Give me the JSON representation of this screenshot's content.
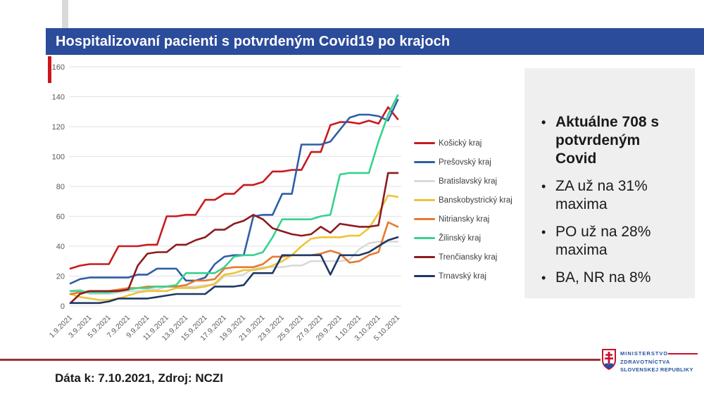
{
  "title_bar": {
    "title": "Hospitalizovaní pacienti s potvrdeným Covid19 po krajoch",
    "bg_color": "#2B4B9B",
    "accent_red": "#D01317"
  },
  "chart_data": {
    "type": "line",
    "title": "",
    "xlabel": "",
    "ylabel": "",
    "ylim": [
      0,
      160
    ],
    "ytick_step": 20,
    "grid": "horizontal-only",
    "legend_position": "right",
    "x_label_every": 2,
    "categories": [
      "1.9.2021",
      "2.9.2021",
      "3.9.2021",
      "4.9.2021",
      "5.9.2021",
      "6.9.2021",
      "7.9.2021",
      "8.9.2021",
      "9.9.2021",
      "10.9.2021",
      "11.9.2021",
      "12.9.2021",
      "13.9.2021",
      "14.9.2021",
      "15.9.2021",
      "16.9.2021",
      "17.9.2021",
      "18.9.2021",
      "19.9.2021",
      "20.9.2021",
      "21.9.2021",
      "22.9.2021",
      "23.9.2021",
      "24.9.2021",
      "25.9.2021",
      "26.9.2021",
      "27.9.2021",
      "28.9.2021",
      "29.9.2021",
      "30.9.2021",
      "1.10.2021",
      "2.10.2021",
      "3.10.2021",
      "4.10.2021",
      "5.10.2021"
    ],
    "series": [
      {
        "name": "Košický kraj",
        "color": "#C81A1E",
        "values": [
          25,
          27,
          28,
          28,
          28,
          40,
          40,
          40,
          41,
          41,
          60,
          60,
          61,
          61,
          71,
          71,
          75,
          75,
          81,
          81,
          83,
          90,
          90,
          91,
          91,
          103,
          103,
          121,
          123,
          123,
          122,
          124,
          122,
          133,
          125
        ]
      },
      {
        "name": "Prešovský kraj",
        "color": "#2F5FA5",
        "values": [
          15,
          18,
          19,
          19,
          19,
          19,
          19,
          21,
          21,
          25,
          25,
          25,
          17,
          17,
          19,
          28,
          33,
          34,
          34,
          60,
          61,
          61,
          75,
          75,
          108,
          108,
          108,
          110,
          118,
          126,
          128,
          128,
          127,
          124,
          138
        ]
      },
      {
        "name": "Bratislavský kraj",
        "color": "#D9D9D9",
        "values": [
          10,
          11,
          8,
          8,
          8,
          9,
          10,
          10,
          11,
          11,
          13,
          13,
          13,
          13,
          14,
          14,
          20,
          20,
          21,
          25,
          26,
          26,
          26,
          27,
          27,
          30,
          30,
          30,
          30,
          31,
          38,
          42,
          43,
          43,
          43
        ]
      },
      {
        "name": "Banskobystrický kraj",
        "color": "#EDC437",
        "values": [
          8,
          6,
          5,
          4,
          4,
          5,
          7,
          9,
          10,
          10,
          10,
          12,
          12,
          12,
          13,
          15,
          21,
          22,
          24,
          24,
          25,
          27,
          30,
          34,
          40,
          45,
          46,
          46,
          46,
          47,
          47,
          52,
          62,
          74,
          73
        ]
      },
      {
        "name": "Nitriansky kraj",
        "color": "#E8792E",
        "values": [
          8,
          9,
          10,
          10,
          10,
          11,
          12,
          12,
          13,
          13,
          13,
          13,
          14,
          17,
          17,
          18,
          25,
          26,
          26,
          26,
          28,
          33,
          33,
          34,
          34,
          34,
          35,
          37,
          35,
          29,
          30,
          34,
          36,
          56,
          53
        ]
      },
      {
        "name": "Žilinský kraj",
        "color": "#35D28F",
        "values": [
          10,
          10,
          9,
          9,
          9,
          10,
          11,
          12,
          12,
          13,
          13,
          14,
          22,
          22,
          22,
          22,
          26,
          33,
          34,
          34,
          36,
          46,
          58,
          58,
          58,
          58,
          60,
          61,
          88,
          89,
          89,
          89,
          110,
          128,
          141
        ]
      },
      {
        "name": "Trenčiansky kraj",
        "color": "#8B1B1E",
        "values": [
          2,
          8,
          10,
          10,
          10,
          10,
          11,
          27,
          35,
          36,
          36,
          41,
          41,
          44,
          46,
          51,
          51,
          55,
          57,
          61,
          58,
          52,
          50,
          48,
          47,
          48,
          53,
          49,
          55,
          54,
          53,
          53,
          54,
          89,
          89
        ]
      },
      {
        "name": "Trnavský kraj",
        "color": "#1F3864",
        "values": [
          2,
          2,
          2,
          2,
          3,
          5,
          5,
          5,
          5,
          6,
          7,
          8,
          8,
          8,
          8,
          13,
          13,
          13,
          14,
          22,
          22,
          22,
          34,
          34,
          34,
          34,
          34,
          21,
          34,
          34,
          34,
          36,
          40,
          44,
          46
        ]
      }
    ]
  },
  "panel": {
    "bg_color": "#EFEFEF",
    "bullets": [
      {
        "text": "Aktuálne 708 s potvrdeným Covid",
        "bold": true
      },
      {
        "text": "ZA už na 31% maxima",
        "bold": false
      },
      {
        "text": "PO už na 28% maxima",
        "bold": false
      },
      {
        "text": "BA, NR na 8%",
        "bold": false
      }
    ]
  },
  "footer": {
    "text": "Dáta k: 7.10.2021, Zdroj: NCZI",
    "divider_color": "#9E3039"
  },
  "logo": {
    "line1": "MINISTERSTVO",
    "line2": "ZDRAVOTNÍCTVA",
    "line3": "SLOVENSKEJ REPUBLIKY"
  }
}
